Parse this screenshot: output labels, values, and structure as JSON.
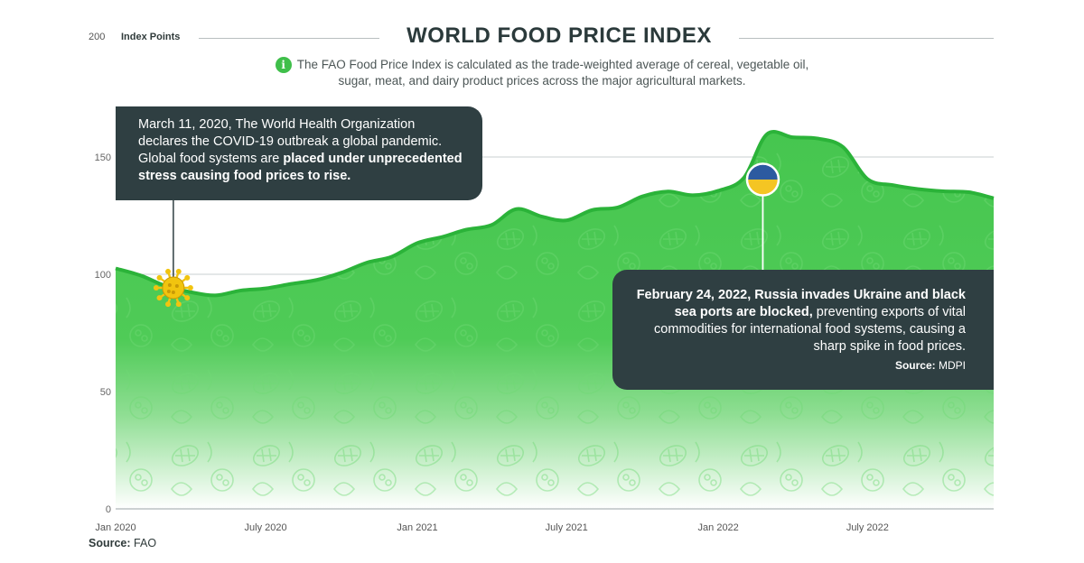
{
  "header": {
    "title": "WORLD FOOD PRICE INDEX",
    "unit_tick": "200",
    "unit_label": "Index Points",
    "info_icon": "i",
    "subtitle": "The FAO Food Price Index is calculated as the trade-weighted average of cereal, vegetable oil, sugar, meat, and dairy product prices across the major agricultural markets."
  },
  "callouts": {
    "covid": {
      "text_plain": "March 11, 2020, The World Health Organization declares the COVID-19 outbreak a global pandemic. Global food systems are ",
      "text_bold": "placed under unprecedented stress causing food prices to rise.",
      "marker_icon": "virus-icon"
    },
    "ukraine": {
      "text_bold": "February 24, 2022, Russia invades Ukraine and black sea ports are blocked,",
      "text_plain": " preventing exports of vital commodities for international food systems, causing a sharp spike in food prices.",
      "source_label": "Source:",
      "source_value": " MDPI",
      "marker_icon": "ukraine-flag-icon"
    }
  },
  "footer": {
    "source_label": "Source:",
    "source_value": "FAO"
  },
  "colors": {
    "area_top": "#46c64f",
    "area_bottom": "#ffffff",
    "line": "#2bb339",
    "callout_bg": "#2f3f42",
    "virus": "#f1c40f",
    "flag_blue": "#2c5aa0",
    "flag_yellow": "#f4c523"
  },
  "chart_data": {
    "type": "area",
    "title": "WORLD FOOD PRICE INDEX",
    "ylabel": "Index Points",
    "ylim": [
      0,
      200
    ],
    "yticks": [
      0,
      50,
      100,
      150
    ],
    "xlim": [
      "2020-01",
      "2022-12"
    ],
    "xtick_labels": [
      "Jan 2020",
      "July 2020",
      "Jan 2021",
      "July 2021",
      "Jan 2022",
      "July 2022"
    ],
    "x": [
      "2020-01",
      "2020-02",
      "2020-03",
      "2020-04",
      "2020-05",
      "2020-06",
      "2020-07",
      "2020-08",
      "2020-09",
      "2020-10",
      "2020-11",
      "2020-12",
      "2021-01",
      "2021-02",
      "2021-03",
      "2021-04",
      "2021-05",
      "2021-06",
      "2021-07",
      "2021-08",
      "2021-09",
      "2021-10",
      "2021-11",
      "2021-12",
      "2022-01",
      "2022-02",
      "2022-03",
      "2022-04",
      "2022-05",
      "2022-06",
      "2022-07",
      "2022-08",
      "2022-09",
      "2022-10",
      "2022-11",
      "2022-12"
    ],
    "values": [
      102.5,
      99.4,
      95.1,
      92.4,
      91.0,
      93.1,
      94.0,
      95.9,
      97.6,
      100.7,
      105.0,
      107.5,
      113.3,
      116.0,
      119.0,
      121.0,
      127.8,
      124.6,
      123.0,
      127.4,
      128.5,
      133.2,
      135.3,
      133.7,
      135.6,
      141.1,
      159.7,
      158.4,
      157.9,
      154.3,
      140.6,
      138.0,
      136.3,
      135.4,
      135.0,
      132.4
    ],
    "grid": true,
    "annotations": [
      {
        "date": "2020-03-11",
        "label": "March 11, 2020"
      },
      {
        "date": "2022-02-24",
        "label": "February 24, 2022"
      }
    ]
  }
}
